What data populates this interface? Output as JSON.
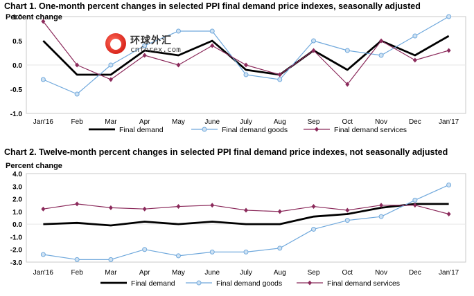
{
  "chart_data": [
    {
      "type": "line",
      "title": "Chart 1. One-month percent changes in selected PPI final demand price indexes, seasonally adjusted",
      "ylabel": "Percent change",
      "xlabel": "",
      "categories": [
        "Jan'16",
        "Feb",
        "Mar",
        "Apr",
        "May",
        "June",
        "July",
        "Aug",
        "Sep",
        "Oct",
        "Nov",
        "Dec",
        "Jan'17"
      ],
      "ylim": [
        -1.0,
        1.0
      ],
      "yticks": [
        "1.0",
        "0.5",
        "0.0",
        "-0.5",
        "-1.0"
      ],
      "grid": false,
      "legend": "bottom",
      "series": [
        {
          "name": "Final demand",
          "color": "#000000",
          "marker": "none",
          "values": [
            0.5,
            -0.2,
            -0.2,
            0.3,
            0.2,
            0.5,
            -0.1,
            -0.2,
            0.3,
            -0.1,
            0.5,
            0.2,
            0.6
          ]
        },
        {
          "name": "Final demand goods",
          "color": "#6fa8dc",
          "marker": "circle",
          "values": [
            -0.3,
            -0.6,
            0.0,
            0.4,
            0.7,
            0.7,
            -0.2,
            -0.3,
            0.5,
            0.3,
            0.2,
            0.6,
            1.0
          ]
        },
        {
          "name": "Final demand services",
          "color": "#8b2a5b",
          "marker": "diamond",
          "values": [
            0.9,
            0.0,
            -0.3,
            0.2,
            0.0,
            0.4,
            0.0,
            -0.2,
            0.3,
            -0.4,
            0.5,
            0.1,
            0.3
          ]
        }
      ]
    },
    {
      "type": "line",
      "title": "Chart 2. Twelve-month percent changes in selected PPI final demand price indexes, not seasonally adjusted",
      "ylabel": "Percent change",
      "xlabel": "",
      "categories": [
        "Jan'16",
        "Feb",
        "Mar",
        "Apr",
        "May",
        "June",
        "July",
        "Aug",
        "Sep",
        "Oct",
        "Nov",
        "Dec",
        "Jan'17"
      ],
      "ylim": [
        -3.0,
        4.0
      ],
      "yticks": [
        "4.0",
        "3.0",
        "2.0",
        "1.0",
        "0.0",
        "-1.0",
        "-2.0",
        "-3.0"
      ],
      "grid": false,
      "legend": "bottom",
      "series": [
        {
          "name": "Final demand",
          "color": "#000000",
          "marker": "none",
          "values": [
            0.0,
            0.1,
            -0.1,
            0.2,
            0.0,
            0.2,
            0.0,
            0.0,
            0.6,
            0.8,
            1.3,
            1.6,
            1.6
          ]
        },
        {
          "name": "Final demand goods",
          "color": "#6fa8dc",
          "marker": "circle",
          "values": [
            -2.4,
            -2.8,
            -2.8,
            -2.0,
            -2.5,
            -2.2,
            -2.2,
            -1.9,
            -0.4,
            0.3,
            0.6,
            1.9,
            3.1
          ]
        },
        {
          "name": "Final demand services",
          "color": "#8b2a5b",
          "marker": "diamond",
          "values": [
            1.2,
            1.6,
            1.3,
            1.2,
            1.4,
            1.5,
            1.1,
            1.0,
            1.4,
            1.1,
            1.5,
            1.5,
            0.8
          ]
        }
      ]
    }
  ],
  "watermark": {
    "cn": "环球外汇",
    "en": "cnforex.com"
  }
}
